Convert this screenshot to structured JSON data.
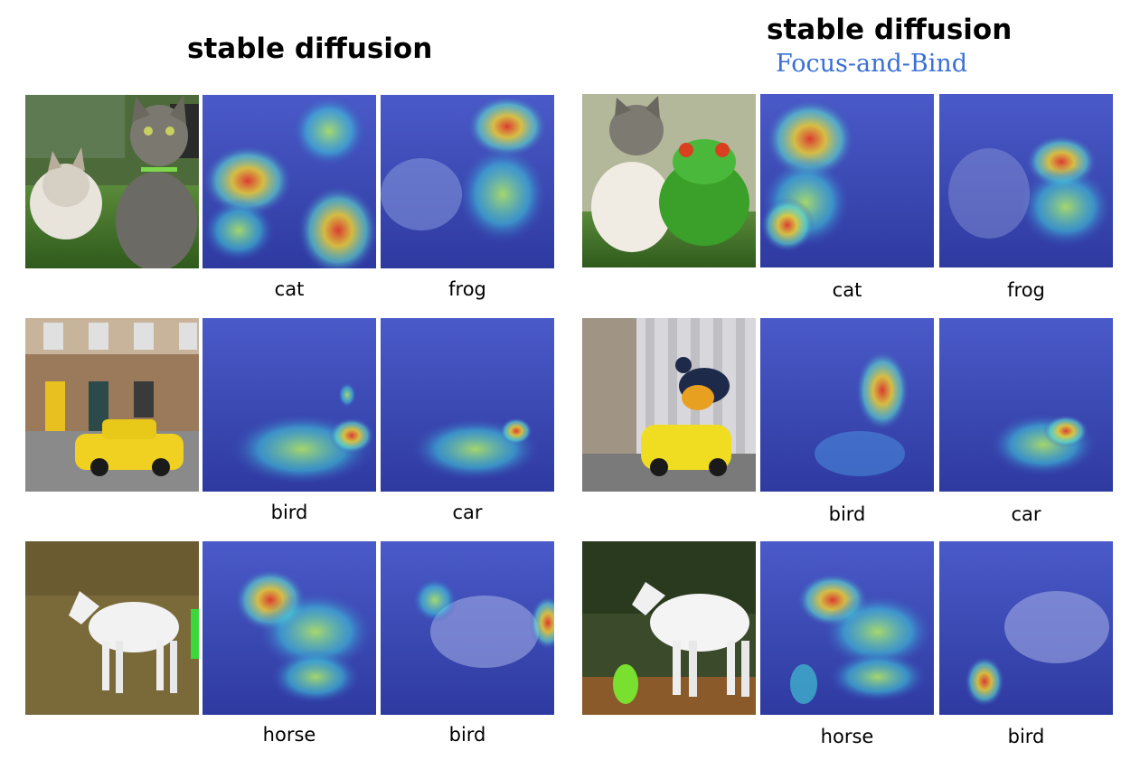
{
  "left_panel": {
    "title": "stable diffusion",
    "rows": [
      {
        "scene": "cat-cat",
        "labels": [
          "cat",
          "frog"
        ]
      },
      {
        "scene": "yellow-car-street",
        "labels": [
          "bird",
          "car"
        ]
      },
      {
        "scene": "white-horse-field",
        "labels": [
          "horse",
          "bird"
        ]
      }
    ]
  },
  "right_panel": {
    "title": "stable diffusion",
    "subtitle": "Focus-and-Bind",
    "rows": [
      {
        "scene": "cat-frog",
        "labels": [
          "cat",
          "frog"
        ]
      },
      {
        "scene": "bird-on-car",
        "labels": [
          "bird",
          "car"
        ]
      },
      {
        "scene": "horse-and-bird",
        "labels": [
          "horse",
          "bird"
        ]
      }
    ]
  },
  "colors": {
    "subtitle": "#3a6fd6",
    "heatmap_base": "#3a44b8",
    "heatmap_hot": "#e23a2a"
  }
}
